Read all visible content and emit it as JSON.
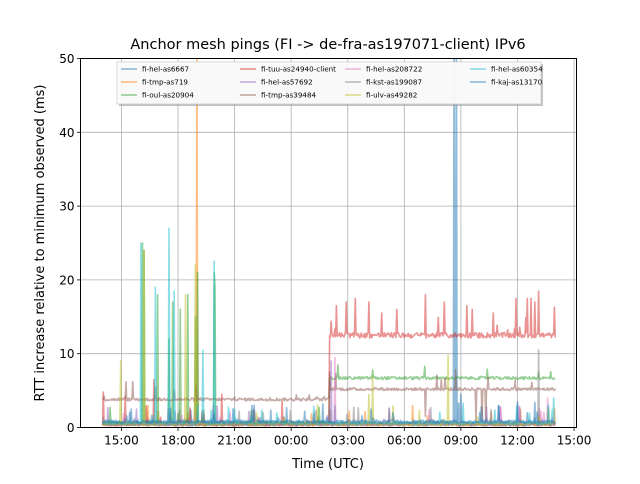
{
  "chart_data": {
    "type": "line",
    "title": "Anchor mesh pings (FI -> de-fra-as197071-client) IPv6",
    "xlabel": "Time (UTC)",
    "ylabel": "RTT increase relative to minimum observed (ms)",
    "x_units": "hours since 00:00 of first day",
    "xlim": [
      12.83,
      39.13
    ],
    "ylim": [
      0,
      50
    ],
    "x_ticks": [
      {
        "value": 15,
        "label": "15:00"
      },
      {
        "value": 18,
        "label": "18:00"
      },
      {
        "value": 21,
        "label": "21:00"
      },
      {
        "value": 24,
        "label": "00:00"
      },
      {
        "value": 27,
        "label": "03:00"
      },
      {
        "value": 30,
        "label": "06:00"
      },
      {
        "value": 33,
        "label": "09:00"
      },
      {
        "value": 36,
        "label": "12:00"
      },
      {
        "value": 39,
        "label": "15:00"
      }
    ],
    "y_ticks": [
      0,
      10,
      20,
      30,
      40,
      50
    ],
    "grid": true,
    "legend_placement": "top-center",
    "x_range": [
      14.0,
      38.0
    ],
    "series": [
      {
        "name": "fi-hel-as6667",
        "color": "#1f77b4",
        "levels": [
          [
            14,
            0.6
          ]
        ],
        "spikes": [
          [
            32.65,
            55
          ],
          [
            32.75,
            55
          ],
          [
            26.3,
            3
          ],
          [
            35.0,
            3
          ]
        ]
      },
      {
        "name": "fi-tmp-as719",
        "color": "#ff7f0e",
        "levels": [
          [
            14,
            0.4
          ]
        ],
        "spikes": [
          [
            19.0,
            55
          ],
          [
            16.4,
            3
          ],
          [
            18.5,
            2
          ]
        ]
      },
      {
        "name": "fi-oul-as20904",
        "color": "#2ca02c",
        "levels": [
          [
            14,
            0.6
          ],
          [
            26.0,
            6.7
          ]
        ],
        "spikes": [
          [
            16.1,
            25
          ],
          [
            16.2,
            24
          ],
          [
            16.9,
            18
          ],
          [
            17.5,
            12
          ],
          [
            17.7,
            17
          ],
          [
            18.1,
            16
          ],
          [
            18.5,
            18
          ],
          [
            18.9,
            15
          ],
          [
            19.05,
            21
          ],
          [
            19.9,
            21
          ],
          [
            19.95,
            19
          ],
          [
            37.1,
            7.5
          ],
          [
            28.3,
            7.8
          ]
        ]
      },
      {
        "name": "fi-tuu-as24940-client",
        "color": "#d62728",
        "levels": [
          [
            14,
            0.5
          ],
          [
            26.0,
            12.5
          ]
        ],
        "spikes": [
          [
            14.05,
            4.8
          ],
          [
            15.2,
            4.2
          ],
          [
            16.7,
            6.5
          ],
          [
            20.3,
            4.5
          ],
          [
            23.5,
            3.5
          ],
          [
            26.4,
            16.5
          ],
          [
            26.9,
            17
          ],
          [
            27.4,
            17.5
          ],
          [
            28.1,
            17
          ],
          [
            28.8,
            15.5
          ],
          [
            29.6,
            16
          ],
          [
            31.1,
            18
          ],
          [
            32.1,
            17
          ],
          [
            33.3,
            16.5
          ],
          [
            33.6,
            16
          ],
          [
            34.7,
            15.5
          ],
          [
            35.9,
            17.5
          ],
          [
            36.5,
            17.5
          ],
          [
            36.7,
            17.5
          ],
          [
            36.9,
            17
          ],
          [
            37.1,
            18.5
          ],
          [
            37.95,
            16.3
          ]
        ]
      },
      {
        "name": "fi-hel-as57692",
        "color": "#9467bd",
        "levels": [
          [
            14,
            0.5
          ]
        ],
        "spikes": [
          [
            26.1,
            9
          ],
          [
            15.8,
            2.5
          ]
        ]
      },
      {
        "name": "fi-tmp-as39484",
        "color": "#8c564b",
        "levels": [
          [
            14,
            3.8
          ],
          [
            26.0,
            5.2
          ]
        ],
        "spikes": [
          [
            26.05,
            7.5
          ],
          [
            31.1,
            1.5
          ],
          [
            33.8,
            0.8
          ],
          [
            34.1,
            0.8
          ],
          [
            34.3,
            0.8
          ]
        ]
      },
      {
        "name": "fi-hel-as208722",
        "color": "#e377c2",
        "levels": [
          [
            14,
            0.4
          ]
        ],
        "spikes": [
          [
            26.3,
            9.5
          ],
          [
            37.6,
            4
          ]
        ]
      },
      {
        "name": "fi-kst-as199087",
        "color": "#7f7f7f",
        "levels": [
          [
            14,
            0.4
          ]
        ],
        "spikes": [
          [
            37.1,
            10.5
          ],
          [
            22.5,
            2
          ]
        ]
      },
      {
        "name": "fi-ulv-as49282",
        "color": "#bcbd22",
        "levels": [
          [
            14,
            0.5
          ]
        ],
        "spikes": [
          [
            14.95,
            9
          ],
          [
            16.2,
            24
          ],
          [
            18.9,
            22
          ],
          [
            18.4,
            18
          ],
          [
            28.1,
            4.5
          ],
          [
            28.3,
            7
          ],
          [
            32.3,
            9.8
          ]
        ]
      },
      {
        "name": "fi-hel-as60354",
        "color": "#17becf",
        "levels": [
          [
            14,
            0.6
          ]
        ],
        "spikes": [
          [
            16.05,
            25
          ],
          [
            16.8,
            19
          ],
          [
            17.5,
            27
          ],
          [
            17.8,
            18.5
          ],
          [
            19.3,
            10.5
          ],
          [
            19.9,
            22.5
          ],
          [
            37.9,
            4
          ]
        ]
      },
      {
        "name": "fi-kaj-as13170",
        "color": "#1f77b4",
        "levels": [
          [
            14,
            0.8
          ]
        ],
        "spikes": [
          [
            15.5,
            2.5
          ],
          [
            33.0,
            4.5
          ],
          [
            36.0,
            3.5
          ]
        ]
      }
    ]
  }
}
